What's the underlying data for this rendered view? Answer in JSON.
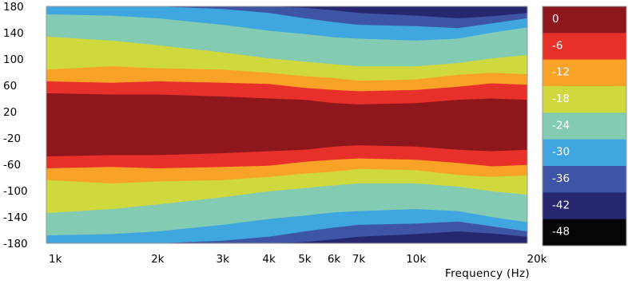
{
  "chart_data": {
    "type": "heatmap",
    "xlabel": "Frequency  (Hz)",
    "x_scale": "log",
    "xlim": [
      1000,
      20000
    ],
    "x_ticks": [
      {
        "value": 1000,
        "label": "1k"
      },
      {
        "value": 2000,
        "label": "2k"
      },
      {
        "value": 3000,
        "label": "3k"
      },
      {
        "value": 4000,
        "label": "4k"
      },
      {
        "value": 5000,
        "label": "5k"
      },
      {
        "value": 6000,
        "label": "6k"
      },
      {
        "value": 7000,
        "label": "7k"
      },
      {
        "value": 10000,
        "label": "10k"
      },
      {
        "value": 20000,
        "label": "20k"
      }
    ],
    "ylim": [
      -180,
      180
    ],
    "y_ticks": [
      {
        "value": 180,
        "label": "180"
      },
      {
        "value": 140,
        "label": "140"
      },
      {
        "value": 100,
        "label": "100"
      },
      {
        "value": 60,
        "label": "60"
      },
      {
        "value": 20,
        "label": "20"
      },
      {
        "value": -20,
        "label": "-20"
      },
      {
        "value": -60,
        "label": "-60"
      },
      {
        "value": -100,
        "label": "-100"
      },
      {
        "value": -140,
        "label": "-140"
      },
      {
        "value": -180,
        "label": "-180"
      }
    ],
    "levels": [
      {
        "label": "0",
        "color": "#8d171c"
      },
      {
        "label": "-6",
        "color": "#e8302a"
      },
      {
        "label": "-12",
        "color": "#f8a228"
      },
      {
        "label": "-18",
        "color": "#cfd83d"
      },
      {
        "label": "-24",
        "color": "#84cbb4"
      },
      {
        "label": "-30",
        "color": "#3fa6df"
      },
      {
        "label": "-36",
        "color": "#3d55a4"
      },
      {
        "label": "-42",
        "color": "#26276e"
      },
      {
        "label": "-48",
        "color": "#050505"
      }
    ],
    "contour_bounds_angle_deg": {
      "frequencies_hz": [
        1000,
        1500,
        2000,
        3000,
        4000,
        5000,
        6000,
        7000,
        10000,
        13000,
        16000,
        20000
      ],
      "level_0_to_-6": [
        48,
        46,
        46,
        43,
        40,
        38,
        33,
        31,
        33,
        38,
        40,
        38
      ],
      "level_-6_to_-12": [
        66,
        64,
        66,
        64,
        62,
        56,
        53,
        51,
        53,
        58,
        63,
        61
      ],
      "level_-12_to_-18": [
        84,
        89,
        86,
        84,
        79,
        74,
        71,
        67,
        69,
        76,
        79,
        77
      ],
      "level_-18_to_-24": [
        134,
        128,
        121,
        110,
        101,
        96,
        92,
        89,
        89,
        94,
        101,
        106
      ],
      "level_-24_to_-30": [
        168,
        166,
        162,
        152,
        143,
        138,
        133,
        131,
        128,
        131,
        140,
        148
      ],
      "level_-30_to_-36": [
        180,
        180,
        180,
        176,
        170,
        162,
        156,
        152,
        150,
        147,
        154,
        162
      ],
      "level_-36_to_-42": [
        180,
        180,
        180,
        180,
        180,
        178,
        174,
        170,
        166,
        162,
        165,
        170
      ]
    }
  }
}
